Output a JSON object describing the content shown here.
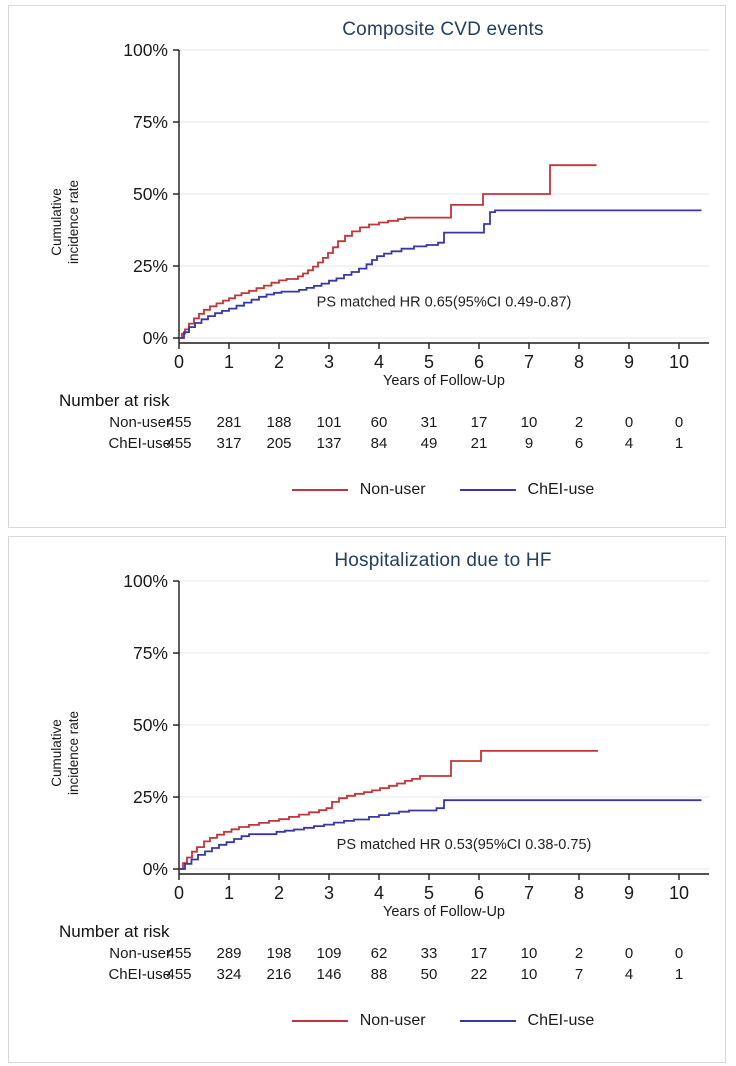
{
  "colors": {
    "red": "#c03539",
    "blue": "#3737a6",
    "title": "#25405e",
    "grid": "#e9eced",
    "axis": "#1a1a1a",
    "panel_border": "#d8d8d8"
  },
  "chart_data": [
    {
      "type": "line",
      "step": true,
      "title": "Composite CVD events",
      "xlabel": "Years of Follow-Up",
      "ylabel": "Cumulative incidence rate",
      "ylabel_lines": [
        "Cumulative",
        "incidence rate"
      ],
      "xlim": [
        0,
        10.6
      ],
      "ylim": [
        0,
        100
      ],
      "x_ticks": [
        0,
        1,
        2,
        3,
        4,
        5,
        6,
        7,
        8,
        9,
        10
      ],
      "y_ticks": [
        {
          "v": 0,
          "label": "0%"
        },
        {
          "v": 25,
          "label": "25%"
        },
        {
          "v": 50,
          "label": "50%"
        },
        {
          "v": 75,
          "label": "75%"
        },
        {
          "v": 100,
          "label": "100%"
        }
      ],
      "grid": true,
      "legend_position": "bottom",
      "annotation": {
        "text": "PS matched HR 0.65(95%CI 0.49-0.87)",
        "x": 5.3,
        "y": 11
      },
      "series": [
        {
          "name": "Non-user",
          "color_key": "red",
          "end_x": 8.35,
          "points": [
            [
              0,
              0
            ],
            [
              0.06,
              1.5
            ],
            [
              0.12,
              3
            ],
            [
              0.2,
              5
            ],
            [
              0.3,
              6.8
            ],
            [
              0.4,
              8.4
            ],
            [
              0.5,
              9.8
            ],
            [
              0.62,
              11
            ],
            [
              0.75,
              12
            ],
            [
              0.88,
              13
            ],
            [
              1.0,
              13.8
            ],
            [
              1.12,
              14.8
            ],
            [
              1.25,
              15.6
            ],
            [
              1.4,
              16.4
            ],
            [
              1.55,
              17.3
            ],
            [
              1.7,
              18.2
            ],
            [
              1.85,
              19.2
            ],
            [
              2.0,
              20
            ],
            [
              2.15,
              20.5
            ],
            [
              2.38,
              21.4
            ],
            [
              2.48,
              22.4
            ],
            [
              2.58,
              23.5
            ],
            [
              2.68,
              24.8
            ],
            [
              2.78,
              26.2
            ],
            [
              2.88,
              27.8
            ],
            [
              2.98,
              29.5
            ],
            [
              3.08,
              31.5
            ],
            [
              3.18,
              33.6
            ],
            [
              3.32,
              35.5
            ],
            [
              3.46,
              37
            ],
            [
              3.62,
              38.4
            ],
            [
              3.8,
              39.4
            ],
            [
              4.0,
              40.1
            ],
            [
              4.18,
              40.7
            ],
            [
              4.38,
              41.3
            ],
            [
              4.52,
              41.8
            ],
            [
              5.44,
              46.2
            ],
            [
              6.08,
              50
            ],
            [
              7.42,
              60
            ]
          ]
        },
        {
          "name": "ChEI-use",
          "color_key": "blue",
          "end_x": 10.45,
          "points": [
            [
              0,
              0
            ],
            [
              0.1,
              2
            ],
            [
              0.2,
              3.8
            ],
            [
              0.32,
              5.2
            ],
            [
              0.45,
              6.5
            ],
            [
              0.58,
              7.6
            ],
            [
              0.72,
              8.6
            ],
            [
              0.86,
              9.4
            ],
            [
              1.0,
              10.2
            ],
            [
              1.15,
              11.2
            ],
            [
              1.3,
              12.3
            ],
            [
              1.45,
              13.3
            ],
            [
              1.6,
              14.3
            ],
            [
              1.75,
              15.1
            ],
            [
              1.9,
              15.7
            ],
            [
              2.05,
              16.1
            ],
            [
              2.4,
              16.7
            ],
            [
              2.55,
              17.4
            ],
            [
              2.7,
              18.1
            ],
            [
              2.85,
              18.9
            ],
            [
              3.0,
              19.9
            ],
            [
              3.15,
              20.7
            ],
            [
              3.3,
              21.9
            ],
            [
              3.45,
              22.9
            ],
            [
              3.6,
              24.1
            ],
            [
              3.75,
              25.6
            ],
            [
              3.86,
              27.1
            ],
            [
              3.96,
              28.4
            ],
            [
              4.1,
              29.3
            ],
            [
              4.25,
              30.1
            ],
            [
              4.45,
              31
            ],
            [
              4.7,
              31.8
            ],
            [
              4.95,
              32.3
            ],
            [
              5.18,
              33.1
            ],
            [
              5.3,
              36.6
            ],
            [
              6.1,
              39.6
            ],
            [
              6.22,
              43.7
            ],
            [
              6.32,
              44.3
            ]
          ]
        }
      ],
      "number_at_risk": {
        "heading": "Number at risk",
        "rows": [
          {
            "label": "Non-user",
            "values": [
              455,
              281,
              188,
              101,
              60,
              31,
              17,
              10,
              2,
              0,
              0
            ]
          },
          {
            "label": "ChEI-use",
            "values": [
              455,
              317,
              205,
              137,
              84,
              49,
              21,
              9,
              6,
              4,
              1
            ]
          }
        ]
      },
      "legend": [
        {
          "label": "Non-user",
          "color_key": "red"
        },
        {
          "label": "ChEI-use",
          "color_key": "blue"
        }
      ]
    },
    {
      "type": "line",
      "step": true,
      "title": "Hospitalization due to HF",
      "xlabel": "Years of Follow-Up",
      "ylabel": "Cumulative incidence rate",
      "ylabel_lines": [
        "Cumulative",
        "incidence rate"
      ],
      "xlim": [
        0,
        10.6
      ],
      "ylim": [
        0,
        100
      ],
      "x_ticks": [
        0,
        1,
        2,
        3,
        4,
        5,
        6,
        7,
        8,
        9,
        10
      ],
      "y_ticks": [
        {
          "v": 0,
          "label": "0%"
        },
        {
          "v": 25,
          "label": "25%"
        },
        {
          "v": 50,
          "label": "50%"
        },
        {
          "v": 75,
          "label": "75%"
        },
        {
          "v": 100,
          "label": "100%"
        }
      ],
      "grid": true,
      "legend_position": "bottom",
      "annotation": {
        "text": "PS matched HR 0.53(95%CI 0.38-0.75)",
        "x": 5.7,
        "y": 7
      },
      "series": [
        {
          "name": "Non-user",
          "color_key": "red",
          "end_x": 8.38,
          "points": [
            [
              0,
              0
            ],
            [
              0.08,
              2
            ],
            [
              0.16,
              4
            ],
            [
              0.26,
              6
            ],
            [
              0.36,
              7.6
            ],
            [
              0.5,
              9.6
            ],
            [
              0.62,
              10.8
            ],
            [
              0.76,
              11.9
            ],
            [
              0.9,
              12.9
            ],
            [
              1.05,
              13.8
            ],
            [
              1.2,
              14.6
            ],
            [
              1.4,
              15.3
            ],
            [
              1.6,
              16
            ],
            [
              1.8,
              16.7
            ],
            [
              2.0,
              17.3
            ],
            [
              2.2,
              18.1
            ],
            [
              2.4,
              18.9
            ],
            [
              2.6,
              19.7
            ],
            [
              2.8,
              20.4
            ],
            [
              2.95,
              21.1
            ],
            [
              3.06,
              23.3
            ],
            [
              3.2,
              24.6
            ],
            [
              3.36,
              25.4
            ],
            [
              3.52,
              26.1
            ],
            [
              3.7,
              26.7
            ],
            [
              3.86,
              27.3
            ],
            [
              4.02,
              28.1
            ],
            [
              4.2,
              28.9
            ],
            [
              4.36,
              29.7
            ],
            [
              4.52,
              30.6
            ],
            [
              4.66,
              31.3
            ],
            [
              4.82,
              32.3
            ],
            [
              5.44,
              37.5
            ],
            [
              6.04,
              41
            ]
          ]
        },
        {
          "name": "ChEI-use",
          "color_key": "blue",
          "end_x": 10.45,
          "points": [
            [
              0,
              0
            ],
            [
              0.12,
              1.8
            ],
            [
              0.25,
              3.3
            ],
            [
              0.38,
              4.9
            ],
            [
              0.52,
              6.1
            ],
            [
              0.66,
              7.3
            ],
            [
              0.8,
              8.4
            ],
            [
              0.95,
              9.3
            ],
            [
              1.1,
              10.4
            ],
            [
              1.25,
              11.4
            ],
            [
              1.4,
              12.1
            ],
            [
              1.95,
              12.9
            ],
            [
              2.12,
              13.3
            ],
            [
              2.3,
              13.7
            ],
            [
              2.5,
              14.3
            ],
            [
              2.7,
              14.9
            ],
            [
              2.9,
              15.4
            ],
            [
              3.1,
              16.1
            ],
            [
              3.3,
              16.7
            ],
            [
              3.5,
              17.2
            ],
            [
              3.8,
              18.1
            ],
            [
              4.0,
              18.7
            ],
            [
              4.2,
              19.3
            ],
            [
              4.4,
              19.9
            ],
            [
              4.6,
              20.3
            ],
            [
              5.15,
              21.1
            ],
            [
              5.3,
              23.9
            ]
          ]
        }
      ],
      "number_at_risk": {
        "heading": "Number at risk",
        "rows": [
          {
            "label": "Non-user",
            "values": [
              455,
              289,
              198,
              109,
              62,
              33,
              17,
              10,
              2,
              0,
              0
            ]
          },
          {
            "label": "ChEI-use",
            "values": [
              455,
              324,
              216,
              146,
              88,
              50,
              22,
              10,
              7,
              4,
              1
            ]
          }
        ]
      },
      "legend": [
        {
          "label": "Non-user",
          "color_key": "red"
        },
        {
          "label": "ChEI-use",
          "color_key": "blue"
        }
      ]
    }
  ]
}
